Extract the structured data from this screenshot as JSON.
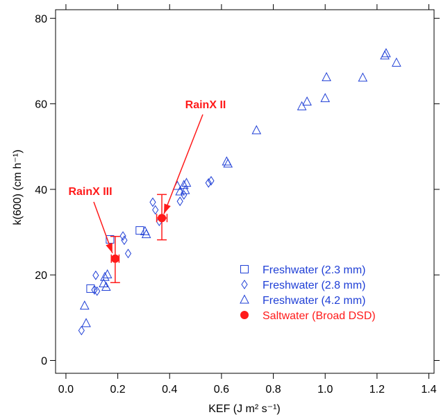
{
  "chart_data": {
    "type": "scatter",
    "xlabel": "KEF (J m² s⁻¹)",
    "ylabel": "k(600) (cm h⁻¹)",
    "xlim": [
      -0.04,
      1.42
    ],
    "ylim": [
      -3,
      82
    ],
    "xticks": [
      "0.0",
      "0.2",
      "0.4",
      "0.6",
      "0.8",
      "1.0",
      "1.2",
      "1.4"
    ],
    "yticks": [
      "0",
      "20",
      "40",
      "60",
      "80"
    ],
    "grid": false,
    "legend_position": "bottom-right",
    "colors": {
      "freshwater": "#1f3fd6",
      "saltwater": "#ff1a1a"
    },
    "series": [
      {
        "name": "Freshwater (2.3 mm)",
        "marker": "square",
        "color": "#1f3fd6",
        "points": [
          [
            0.095,
            16.8
          ],
          [
            0.17,
            28.3
          ],
          [
            0.285,
            30.4
          ]
        ]
      },
      {
        "name": "Freshwater (2.8 mm)",
        "marker": "diamond",
        "color": "#1f3fd6",
        "points": [
          [
            0.06,
            7
          ],
          [
            0.11,
            16.5
          ],
          [
            0.115,
            19.9
          ],
          [
            0.12,
            16.2
          ],
          [
            0.22,
            29.1
          ],
          [
            0.225,
            28.1
          ],
          [
            0.24,
            25
          ],
          [
            0.335,
            37
          ],
          [
            0.345,
            35.2
          ],
          [
            0.36,
            32.5
          ],
          [
            0.44,
            37.2
          ],
          [
            0.455,
            38.7
          ],
          [
            0.55,
            41.5
          ],
          [
            0.56,
            42
          ]
        ]
      },
      {
        "name": "Freshwater (4.2 mm)",
        "marker": "triangle",
        "color": "#1f3fd6",
        "points": [
          [
            0.072,
            12.8
          ],
          [
            0.078,
            8.7
          ],
          [
            0.145,
            18
          ],
          [
            0.15,
            19.5
          ],
          [
            0.155,
            17.2
          ],
          [
            0.16,
            20.1
          ],
          [
            0.305,
            30.2
          ],
          [
            0.31,
            29.5
          ],
          [
            0.43,
            40.8
          ],
          [
            0.44,
            39.5
          ],
          [
            0.455,
            41
          ],
          [
            0.46,
            39.8
          ],
          [
            0.465,
            41.5
          ],
          [
            0.62,
            46.5
          ],
          [
            0.625,
            46
          ],
          [
            0.735,
            53.8
          ],
          [
            0.91,
            59.4
          ],
          [
            0.93,
            60.5
          ],
          [
            1.0,
            61.3
          ],
          [
            1.005,
            66.2
          ],
          [
            1.145,
            66.1
          ],
          [
            1.23,
            71.3
          ],
          [
            1.235,
            71.8
          ],
          [
            1.275,
            69.6
          ]
        ]
      },
      {
        "name": "Saltwater (Broad DSD)",
        "marker": "circle",
        "color": "#ff1a1a",
        "points": [
          {
            "x": 0.19,
            "y": 23.8,
            "xerr": 0.015,
            "ylow": 18.2,
            "yhigh": 29.0
          },
          {
            "x": 0.37,
            "y": 33.3,
            "xerr": 0.02,
            "ylow": 28.2,
            "yhigh": 38.8
          }
        ]
      }
    ],
    "annotations": [
      {
        "text": "RainX II",
        "x": 0.37,
        "y": 33.3
      },
      {
        "text": "RainX III",
        "x": 0.19,
        "y": 23.8
      }
    ]
  }
}
